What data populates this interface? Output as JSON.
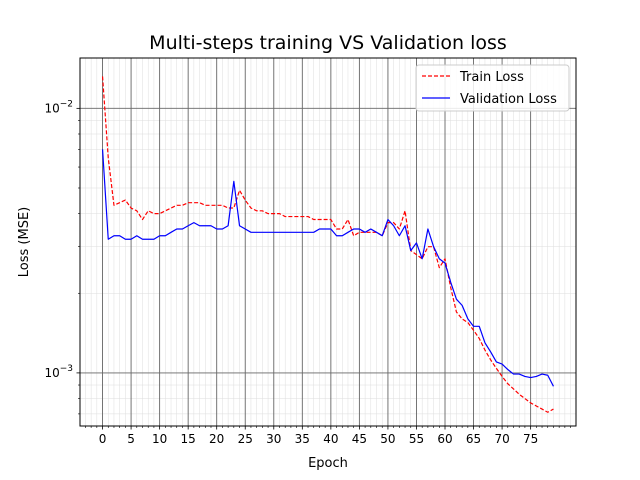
{
  "chart_data": {
    "type": "line",
    "title": "Multi-steps training VS Validation loss",
    "xlabel": "Epoch",
    "ylabel": "Loss (MSE)",
    "yscale": "log",
    "xlim": [
      -3.95,
      82.95
    ],
    "ylim": [
      0.00063,
      0.0155
    ],
    "x_ticks": [
      0,
      5,
      10,
      15,
      20,
      25,
      30,
      35,
      40,
      45,
      50,
      55,
      60,
      65,
      70,
      75
    ],
    "y_ticks": [
      {
        "value": 0.01,
        "label": "10^-2"
      },
      {
        "value": 0.001,
        "label": "10^-3"
      }
    ],
    "grid": "major and minor",
    "legend": "top-right",
    "series": [
      {
        "name": "Train Loss",
        "color": "#ff0000",
        "style": "dashed",
        "x": [
          0,
          1,
          2,
          3,
          4,
          5,
          6,
          7,
          8,
          9,
          10,
          11,
          12,
          13,
          14,
          15,
          16,
          17,
          18,
          19,
          20,
          21,
          22,
          23,
          24,
          25,
          26,
          27,
          28,
          29,
          30,
          31,
          32,
          33,
          34,
          35,
          36,
          37,
          38,
          39,
          40,
          41,
          42,
          43,
          44,
          45,
          46,
          47,
          48,
          49,
          50,
          51,
          52,
          53,
          54,
          55,
          56,
          57,
          58,
          59,
          60,
          61,
          62,
          63,
          64,
          65,
          66,
          67,
          68,
          69,
          70,
          71,
          72,
          73,
          74,
          75,
          76,
          77,
          78,
          79
        ],
        "values": [
          0.0132,
          0.0065,
          0.0043,
          0.0044,
          0.0045,
          0.0042,
          0.0041,
          0.0038,
          0.0041,
          0.004,
          0.004,
          0.0041,
          0.0042,
          0.0043,
          0.0043,
          0.0044,
          0.0044,
          0.0044,
          0.0043,
          0.0043,
          0.0043,
          0.0043,
          0.0042,
          0.0042,
          0.0049,
          0.0045,
          0.0042,
          0.0041,
          0.0041,
          0.004,
          0.004,
          0.004,
          0.0039,
          0.0039,
          0.0039,
          0.0039,
          0.0039,
          0.0038,
          0.0038,
          0.0038,
          0.0038,
          0.0035,
          0.0035,
          0.0038,
          0.0033,
          0.0034,
          0.0034,
          0.0034,
          0.0034,
          0.0033,
          0.0037,
          0.0037,
          0.0035,
          0.0041,
          0.0029,
          0.0028,
          0.0027,
          0.003,
          0.003,
          0.0025,
          0.0027,
          0.0021,
          0.0017,
          0.0016,
          0.00155,
          0.00145,
          0.00135,
          0.00122,
          0.00112,
          0.00104,
          0.00097,
          0.00091,
          0.00087,
          0.00083,
          0.0008,
          0.00077,
          0.00075,
          0.00073,
          0.00071,
          0.00073
        ]
      },
      {
        "name": "Validation Loss",
        "color": "#0000ff",
        "style": "solid",
        "x": [
          0,
          1,
          2,
          3,
          4,
          5,
          6,
          7,
          8,
          9,
          10,
          11,
          12,
          13,
          14,
          15,
          16,
          17,
          18,
          19,
          20,
          21,
          22,
          23,
          24,
          25,
          26,
          27,
          28,
          29,
          30,
          31,
          32,
          33,
          34,
          35,
          36,
          37,
          38,
          39,
          40,
          41,
          42,
          43,
          44,
          45,
          46,
          47,
          48,
          49,
          50,
          51,
          52,
          53,
          54,
          55,
          56,
          57,
          58,
          59,
          60,
          61,
          62,
          63,
          64,
          65,
          66,
          67,
          68,
          69,
          70,
          71,
          72,
          73,
          74,
          75,
          76,
          77,
          78,
          79
        ],
        "values": [
          0.007,
          0.0032,
          0.0033,
          0.0033,
          0.0032,
          0.0032,
          0.0033,
          0.0032,
          0.0032,
          0.0032,
          0.0033,
          0.0033,
          0.0034,
          0.0035,
          0.0035,
          0.0036,
          0.0037,
          0.0036,
          0.0036,
          0.0036,
          0.0035,
          0.0035,
          0.0036,
          0.0053,
          0.0036,
          0.0035,
          0.0034,
          0.0034,
          0.0034,
          0.0034,
          0.0034,
          0.0034,
          0.0034,
          0.0034,
          0.0034,
          0.0034,
          0.0034,
          0.0034,
          0.0035,
          0.0035,
          0.0035,
          0.0033,
          0.0033,
          0.0034,
          0.0035,
          0.0035,
          0.0034,
          0.0035,
          0.0034,
          0.0033,
          0.0038,
          0.0036,
          0.0033,
          0.0036,
          0.0029,
          0.0031,
          0.0027,
          0.0035,
          0.003,
          0.0027,
          0.0026,
          0.0022,
          0.0019,
          0.0018,
          0.0016,
          0.0015,
          0.0015,
          0.0013,
          0.0012,
          0.0011,
          0.00108,
          0.00103,
          0.00099,
          0.00099,
          0.00097,
          0.00096,
          0.00097,
          0.00099,
          0.00098,
          0.00089
        ]
      }
    ]
  }
}
